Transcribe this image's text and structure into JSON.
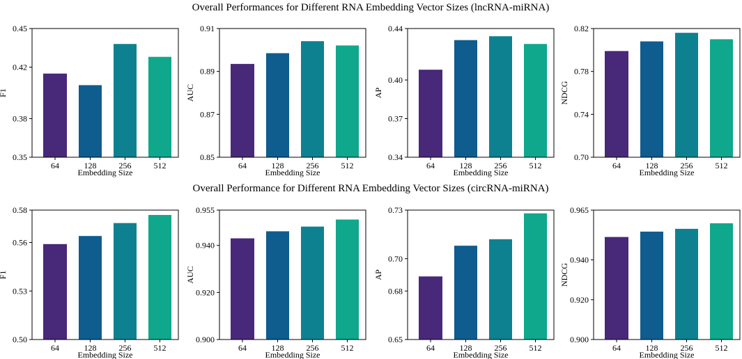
{
  "colors": [
    "#482878",
    "#0f5c8f",
    "#0e8191",
    "#0fa88c"
  ],
  "rows": [
    {
      "title": "Overall Performances for Different RNA Embedding Vector Sizes (lncRNA-miRNA)",
      "chart_data": [
        {
          "type": "bar",
          "categories": [
            "64",
            "128",
            "256",
            "512"
          ],
          "values": [
            0.415,
            0.406,
            0.438,
            0.428
          ],
          "xlabel": "Embedding Size",
          "ylabel": "F1",
          "ylim": [
            0.35,
            0.45
          ],
          "yticks": [
            "0.45",
            "0.42",
            "0.38",
            "0.35"
          ],
          "ytick_values": [
            0.45,
            0.42,
            0.38,
            0.35
          ]
        },
        {
          "type": "bar",
          "categories": [
            "64",
            "128",
            "256",
            "512"
          ],
          "values": [
            0.8935,
            0.8985,
            0.9041,
            0.9021
          ],
          "xlabel": "Embedding Size",
          "ylabel": "AUC",
          "ylim": [
            0.85,
            0.91
          ],
          "yticks": [
            "0.91",
            "0.89",
            "0.87",
            "0.85"
          ],
          "ytick_values": [
            0.91,
            0.89,
            0.87,
            0.85
          ]
        },
        {
          "type": "bar",
          "categories": [
            "64",
            "128",
            "256",
            "512"
          ],
          "values": [
            0.408,
            0.431,
            0.434,
            0.428
          ],
          "xlabel": "Embedding Size",
          "ylabel": "AP",
          "ylim": [
            0.34,
            0.44
          ],
          "yticks": [
            "0.44",
            "0.40",
            "0.37",
            "0.34"
          ],
          "ytick_values": [
            0.44,
            0.4,
            0.37,
            0.34
          ]
        },
        {
          "type": "bar",
          "categories": [
            "64",
            "128",
            "256",
            "512"
          ],
          "values": [
            0.799,
            0.808,
            0.816,
            0.81
          ],
          "xlabel": "Embedding Size",
          "ylabel": "NDCG",
          "ylim": [
            0.7,
            0.82
          ],
          "yticks": [
            "0.82",
            "0.78",
            "0.74",
            "0.70"
          ],
          "ytick_values": [
            0.82,
            0.78,
            0.74,
            0.7
          ]
        }
      ]
    },
    {
      "title": "Overall Performance for Different RNA Embedding Vector Sizes (circRNA-miRNA)",
      "chart_data": [
        {
          "type": "bar",
          "categories": [
            "64",
            "128",
            "256",
            "512"
          ],
          "values": [
            0.559,
            0.564,
            0.572,
            0.577
          ],
          "xlabel": "Embedding Size",
          "ylabel": "F1",
          "ylim": [
            0.5,
            0.58
          ],
          "yticks": [
            "0.58",
            "0.56",
            "0.53",
            "0.50"
          ],
          "ytick_values": [
            0.58,
            0.56,
            0.53,
            0.5
          ]
        },
        {
          "type": "bar",
          "categories": [
            "64",
            "128",
            "256",
            "512"
          ],
          "values": [
            0.943,
            0.946,
            0.948,
            0.951
          ],
          "xlabel": "Embedding Size",
          "ylabel": "AUC",
          "ylim": [
            0.9,
            0.955
          ],
          "yticks": [
            "0.955",
            "0.940",
            "0.920",
            "0.900"
          ],
          "ytick_values": [
            0.955,
            0.94,
            0.92,
            0.9
          ]
        },
        {
          "type": "bar",
          "categories": [
            "64",
            "128",
            "256",
            "512"
          ],
          "values": [
            0.689,
            0.708,
            0.712,
            0.728
          ],
          "xlabel": "Embedding Size",
          "ylabel": "AP",
          "ylim": [
            0.65,
            0.73
          ],
          "yticks": [
            "0.73",
            "0.70",
            "0.68",
            "0.65"
          ],
          "ytick_values": [
            0.73,
            0.7,
            0.68,
            0.65
          ]
        },
        {
          "type": "bar",
          "categories": [
            "64",
            "128",
            "256",
            "512"
          ],
          "values": [
            0.9515,
            0.9542,
            0.9556,
            0.9584
          ],
          "xlabel": "Embedding Size",
          "ylabel": "NDCG",
          "ylim": [
            0.9,
            0.965
          ],
          "yticks": [
            "0.965",
            "0.940",
            "0.920",
            "0.900"
          ],
          "ytick_values": [
            0.965,
            0.94,
            0.92,
            0.9
          ]
        }
      ]
    }
  ]
}
